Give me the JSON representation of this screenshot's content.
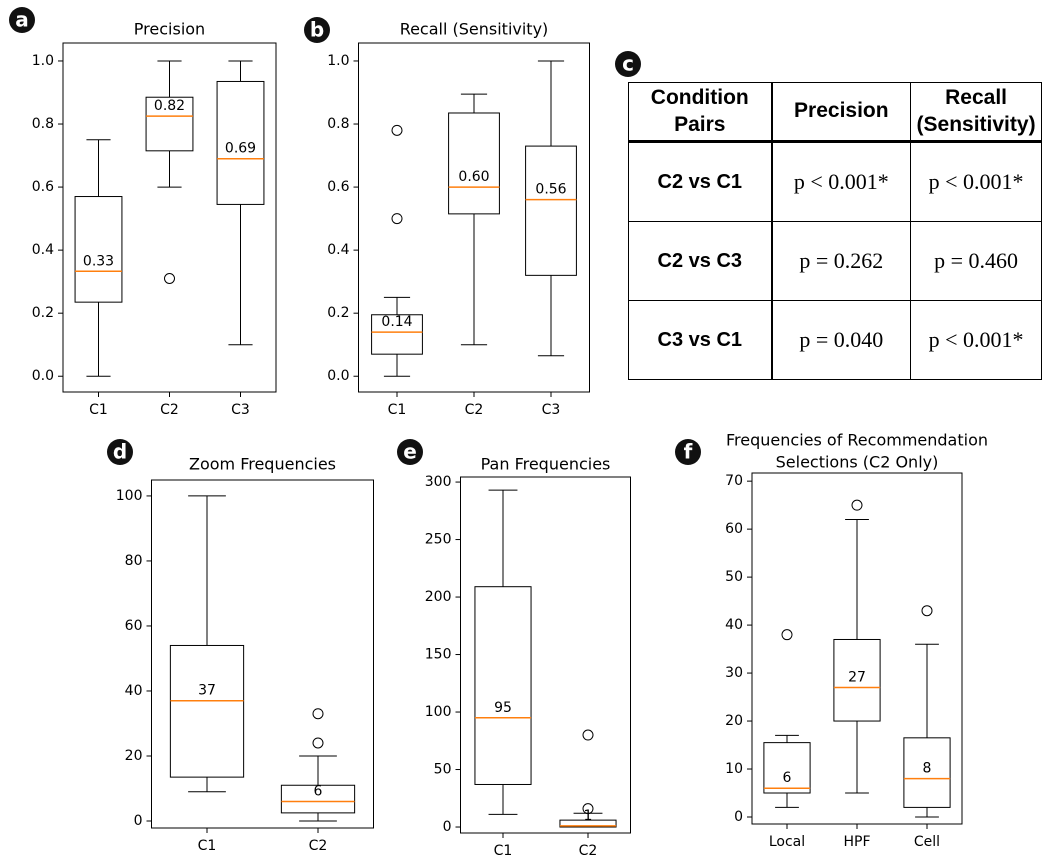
{
  "chart_data": [
    {
      "type": "box",
      "panel_label": "a",
      "title": "Precision",
      "categories": [
        "C1",
        "C2",
        "C3"
      ],
      "boxes": [
        {
          "whislo": 0,
          "q1": 0.235,
          "med": 0.333,
          "q3": 0.57,
          "whishi": 0.75,
          "fliers": []
        },
        {
          "whislo": 0.6,
          "q1": 0.715,
          "med": 0.825,
          "q3": 0.885,
          "whishi": 1.0,
          "fliers": [
            0.31
          ]
        },
        {
          "whislo": 0.1,
          "q1": 0.545,
          "med": 0.69,
          "q3": 0.935,
          "whishi": 1.0,
          "fliers": []
        }
      ],
      "value_labels": [
        "0.33",
        "0.82",
        "0.69"
      ],
      "median_color": "#ff7f0e",
      "ylim": [
        -0.05,
        1.057
      ],
      "yticks": [
        {
          "value": 0,
          "label": "0.0"
        },
        0.2,
        0.4,
        0.6,
        0.8,
        {
          "value": 1,
          "label": "1.0"
        }
      ]
    },
    {
      "type": "box",
      "panel_label": "b",
      "title": "Recall (Sensitivity)",
      "categories": [
        "C1",
        "C2",
        "C3"
      ],
      "boxes": [
        {
          "whislo": 0,
          "q1": 0.07,
          "med": 0.14,
          "q3": 0.195,
          "whishi": 0.25,
          "fliers": [
            0.5,
            0.78
          ]
        },
        {
          "whislo": 0.1,
          "q1": 0.515,
          "med": 0.6,
          "q3": 0.835,
          "whishi": 0.895,
          "fliers": []
        },
        {
          "whislo": 0.065,
          "q1": 0.32,
          "med": 0.56,
          "q3": 0.73,
          "whishi": 1.0,
          "fliers": []
        }
      ],
      "value_labels": [
        "0.14",
        "0.60",
        "0.56"
      ],
      "median_color": "#ff7f0e",
      "ylim": [
        -0.05,
        1.057
      ],
      "yticks": [
        {
          "value": 0,
          "label": "0.0"
        },
        0.2,
        0.4,
        0.6,
        0.8,
        {
          "value": 1,
          "label": "1.0"
        }
      ]
    },
    {
      "type": "box",
      "panel_label": "d",
      "title": "Zoom Frequencies",
      "categories": [
        "C1",
        "C2"
      ],
      "boxes": [
        {
          "whislo": 9,
          "q1": 13.5,
          "med": 37,
          "q3": 54,
          "whishi": 100,
          "fliers": []
        },
        {
          "whislo": 0,
          "q1": 2.5,
          "med": 6,
          "q3": 11,
          "whishi": 20,
          "fliers": [
            24,
            33
          ]
        }
      ],
      "value_labels": [
        "37",
        "6"
      ],
      "median_color": "#ff7f0e",
      "ylim": [
        -2.15,
        104.9
      ],
      "yticks": [
        0,
        20,
        40,
        60,
        80,
        100
      ]
    },
    {
      "type": "box",
      "panel_label": "e",
      "title": "Pan Frequencies",
      "categories": [
        "C1",
        "C2"
      ],
      "boxes": [
        {
          "whislo": 11,
          "q1": 37,
          "med": 95,
          "q3": 209,
          "whishi": 293,
          "fliers": []
        },
        {
          "whislo": 0,
          "q1": 0,
          "med": 1,
          "q3": 6,
          "whishi": 12,
          "fliers": [
            16,
            80
          ]
        }
      ],
      "value_labels": [
        "95",
        "1"
      ],
      "median_color": "#ff7f0e",
      "ylim": [
        -5.2,
        304.4
      ],
      "yticks": [
        0,
        50,
        100,
        150,
        200,
        250,
        300
      ]
    },
    {
      "type": "box",
      "panel_label": "f",
      "title": [
        "Frequencies of Recommendation",
        "Selections (C2 Only)"
      ],
      "categories": [
        "Local",
        "HPF",
        "Cell"
      ],
      "boxes": [
        {
          "whislo": 2,
          "q1": 5,
          "med": 6,
          "q3": 15.5,
          "whishi": 17,
          "fliers": [
            38
          ]
        },
        {
          "whislo": 5,
          "q1": 20,
          "med": 27,
          "q3": 37,
          "whishi": 62,
          "fliers": [
            65
          ]
        },
        {
          "whislo": 0,
          "q1": 2,
          "med": 8,
          "q3": 16.5,
          "whishi": 36,
          "fliers": [
            43
          ]
        }
      ],
      "value_labels": [
        "6",
        "27",
        "8"
      ],
      "median_color": "#ff7f0e",
      "ylim": [
        -1.46,
        71.7
      ],
      "yticks": [
        0,
        10,
        20,
        30,
        40,
        50,
        60,
        70
      ]
    }
  ],
  "table": {
    "panel_label": "c",
    "header": [
      "Condition Pairs",
      "Precision",
      "Recall (Sensitivity)"
    ],
    "rows": [
      [
        "C2 vs C1",
        "p < 0.001*",
        "p < 0.001*"
      ],
      [
        "C2 vs C3",
        "p = 0.262",
        "p = 0.460"
      ],
      [
        "C3 vs C1",
        "p = 0.040",
        "p < 0.001*"
      ]
    ]
  }
}
